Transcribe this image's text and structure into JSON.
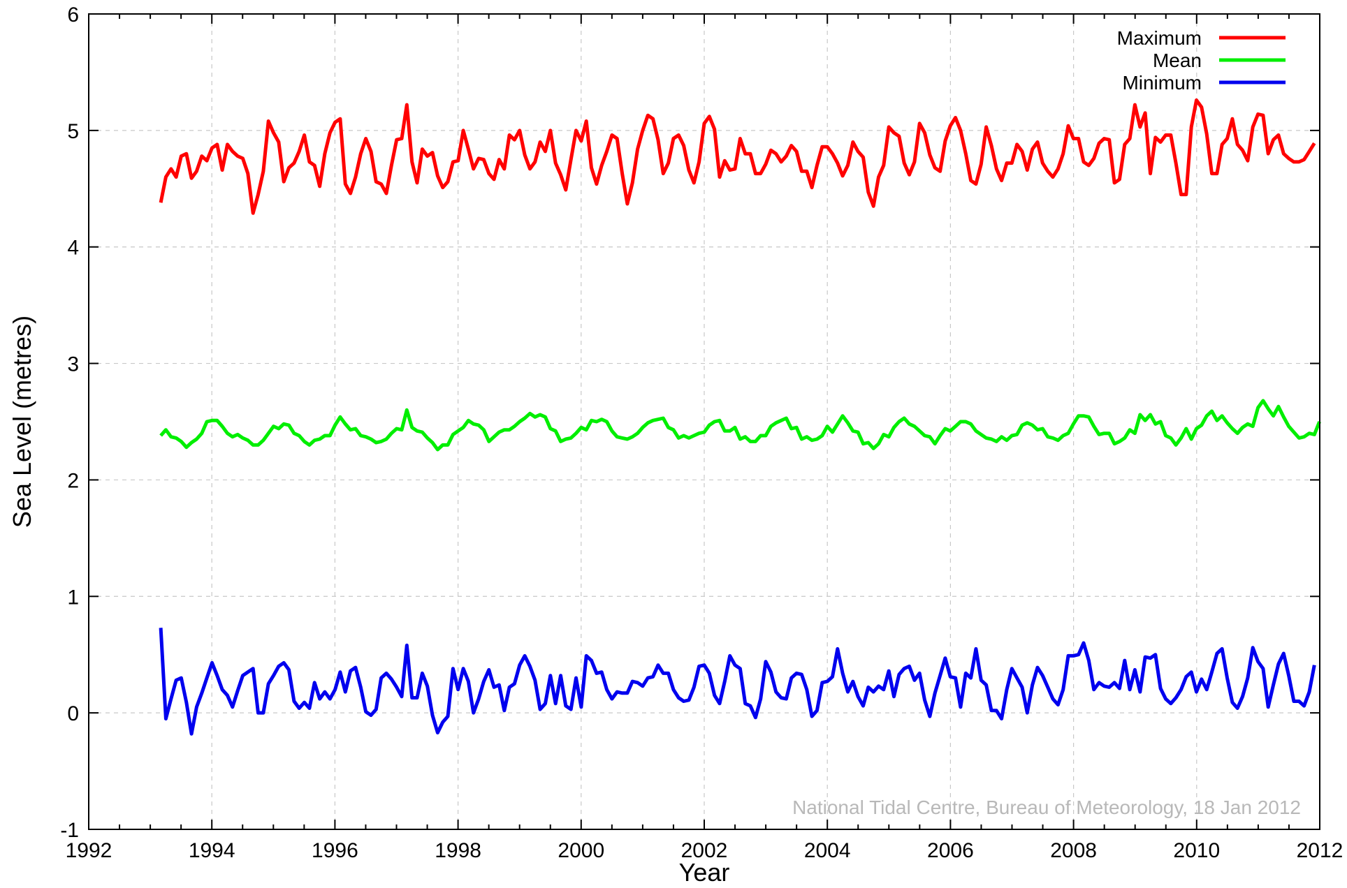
{
  "chart_data": {
    "type": "line",
    "title": "",
    "xlabel": "Year",
    "ylabel": "Sea Level (metres)",
    "xlim": [
      1992,
      2012
    ],
    "ylim": [
      -1,
      6
    ],
    "x_ticks": [
      1992,
      1994,
      1996,
      1998,
      2000,
      2002,
      2004,
      2006,
      2008,
      2010,
      2012
    ],
    "y_ticks": [
      -1,
      0,
      1,
      2,
      3,
      4,
      5,
      6
    ],
    "x_tick_labels": [
      "1992",
      "1994",
      "1996",
      "1998",
      "2000",
      "2002",
      "2004",
      "2006",
      "2008",
      "2010",
      "2012"
    ],
    "y_tick_labels": [
      "-1",
      "0",
      "1",
      "2",
      "3",
      "4",
      "5",
      "6"
    ],
    "grid": true,
    "legend_position": "top-right",
    "credit": "National Tidal Centre, Bureau of Meteorology, 18 Jan 2012",
    "x_start": 1993.17,
    "x_step": 0.0833,
    "series": [
      {
        "name": "Maximum",
        "color": "#ff0000",
        "values": [
          4.38,
          4.6,
          4.67,
          4.6,
          4.78,
          4.8,
          4.59,
          4.65,
          4.78,
          4.74,
          4.85,
          4.88,
          4.66,
          4.88,
          4.82,
          4.78,
          4.76,
          4.63,
          4.29,
          4.45,
          4.65,
          5.08,
          4.98,
          4.9,
          4.56,
          4.68,
          4.72,
          4.82,
          4.96,
          4.73,
          4.7,
          4.52,
          4.8,
          4.98,
          5.07,
          5.1,
          4.54,
          4.46,
          4.6,
          4.8,
          4.93,
          4.82,
          4.56,
          4.54,
          4.46,
          4.7,
          4.92,
          4.93,
          5.22,
          4.73,
          4.55,
          4.84,
          4.78,
          4.81,
          4.61,
          4.51,
          4.56,
          4.73,
          4.74,
          5.0,
          4.84,
          4.67,
          4.76,
          4.75,
          4.63,
          4.58,
          4.75,
          4.67,
          4.96,
          4.92,
          5.0,
          4.79,
          4.67,
          4.73,
          4.9,
          4.82,
          5.0,
          4.72,
          4.62,
          4.49,
          4.75,
          5.0,
          4.91,
          5.08,
          4.68,
          4.54,
          4.7,
          4.82,
          4.96,
          4.93,
          4.63,
          4.37,
          4.55,
          4.84,
          5.0,
          5.13,
          5.1,
          4.92,
          4.63,
          4.72,
          4.93,
          4.96,
          4.87,
          4.66,
          4.55,
          4.73,
          5.06,
          5.12,
          5.01,
          4.6,
          4.74,
          4.66,
          4.67,
          4.93,
          4.8,
          4.8,
          4.63,
          4.63,
          4.71,
          4.83,
          4.8,
          4.73,
          4.78,
          4.87,
          4.82,
          4.65,
          4.65,
          4.51,
          4.7,
          4.86,
          4.86,
          4.8,
          4.72,
          4.61,
          4.7,
          4.9,
          4.82,
          4.77,
          4.47,
          4.35,
          4.6,
          4.7,
          5.03,
          4.98,
          4.95,
          4.72,
          4.62,
          4.73,
          5.06,
          4.98,
          4.79,
          4.68,
          4.65,
          4.91,
          5.04,
          5.11,
          5.0,
          4.8,
          4.57,
          4.54,
          4.71,
          5.03,
          4.87,
          4.67,
          4.57,
          4.72,
          4.72,
          4.88,
          4.82,
          4.66,
          4.84,
          4.9,
          4.72,
          4.65,
          4.6,
          4.67,
          4.8,
          5.04,
          4.93,
          4.93,
          4.73,
          4.7,
          4.76,
          4.89,
          4.93,
          4.92,
          4.55,
          4.58,
          4.88,
          4.93,
          5.22,
          5.03,
          5.15,
          4.63,
          4.94,
          4.9,
          4.96,
          4.96,
          4.72,
          4.45,
          4.45,
          5.03,
          5.26,
          5.2,
          4.97,
          4.63,
          4.63,
          4.88,
          4.93,
          5.1,
          4.88,
          4.83,
          4.74,
          5.03,
          5.14,
          5.13,
          4.8,
          4.92,
          4.96,
          4.8,
          4.76,
          4.73,
          4.73,
          4.75,
          4.82,
          4.89
        ]
      },
      {
        "name": "Mean",
        "color": "#00ee00",
        "values": [
          2.38,
          2.43,
          2.37,
          2.36,
          2.33,
          2.28,
          2.32,
          2.35,
          2.4,
          2.5,
          2.51,
          2.51,
          2.46,
          2.4,
          2.37,
          2.39,
          2.36,
          2.34,
          2.3,
          2.3,
          2.34,
          2.4,
          2.46,
          2.44,
          2.48,
          2.47,
          2.4,
          2.38,
          2.33,
          2.3,
          2.34,
          2.35,
          2.38,
          2.38,
          2.47,
          2.54,
          2.48,
          2.43,
          2.44,
          2.38,
          2.37,
          2.35,
          2.32,
          2.33,
          2.35,
          2.4,
          2.44,
          2.43,
          2.6,
          2.45,
          2.42,
          2.41,
          2.36,
          2.32,
          2.26,
          2.3,
          2.3,
          2.39,
          2.42,
          2.45,
          2.51,
          2.48,
          2.47,
          2.43,
          2.33,
          2.37,
          2.41,
          2.43,
          2.43,
          2.46,
          2.5,
          2.53,
          2.57,
          2.54,
          2.56,
          2.54,
          2.44,
          2.42,
          2.33,
          2.35,
          2.36,
          2.4,
          2.45,
          2.43,
          2.51,
          2.5,
          2.52,
          2.5,
          2.42,
          2.37,
          2.36,
          2.35,
          2.37,
          2.4,
          2.45,
          2.49,
          2.51,
          2.52,
          2.53,
          2.45,
          2.43,
          2.36,
          2.38,
          2.36,
          2.38,
          2.4,
          2.41,
          2.47,
          2.5,
          2.51,
          2.42,
          2.42,
          2.45,
          2.35,
          2.37,
          2.33,
          2.33,
          2.38,
          2.38,
          2.46,
          2.49,
          2.51,
          2.53,
          2.44,
          2.45,
          2.35,
          2.37,
          2.34,
          2.35,
          2.38,
          2.46,
          2.41,
          2.48,
          2.55,
          2.49,
          2.42,
          2.41,
          2.31,
          2.32,
          2.27,
          2.31,
          2.39,
          2.37,
          2.45,
          2.5,
          2.53,
          2.48,
          2.46,
          2.42,
          2.38,
          2.37,
          2.31,
          2.38,
          2.44,
          2.42,
          2.46,
          2.5,
          2.5,
          2.48,
          2.42,
          2.39,
          2.36,
          2.35,
          2.33,
          2.37,
          2.34,
          2.38,
          2.39,
          2.47,
          2.49,
          2.47,
          2.43,
          2.44,
          2.37,
          2.36,
          2.34,
          2.38,
          2.4,
          2.48,
          2.55,
          2.55,
          2.54,
          2.46,
          2.39,
          2.4,
          2.4,
          2.31,
          2.33,
          2.36,
          2.43,
          2.4,
          2.56,
          2.51,
          2.56,
          2.48,
          2.5,
          2.38,
          2.36,
          2.3,
          2.36,
          2.44,
          2.35,
          2.44,
          2.47,
          2.55,
          2.59,
          2.51,
          2.55,
          2.49,
          2.44,
          2.4,
          2.45,
          2.48,
          2.46,
          2.62,
          2.68,
          2.61,
          2.55,
          2.63,
          2.54,
          2.46,
          2.41,
          2.36,
          2.37,
          2.4,
          2.39,
          2.5
        ]
      },
      {
        "name": "Minimum",
        "color": "#0000ee",
        "values": [
          0.73,
          -0.05,
          0.12,
          0.28,
          0.3,
          0.09,
          -0.18,
          0.05,
          0.17,
          0.3,
          0.43,
          0.32,
          0.2,
          0.15,
          0.05,
          0.19,
          0.32,
          0.35,
          0.38,
          0.0,
          0.0,
          0.25,
          0.32,
          0.4,
          0.43,
          0.37,
          0.1,
          0.04,
          0.09,
          0.04,
          0.26,
          0.12,
          0.18,
          0.12,
          0.2,
          0.35,
          0.18,
          0.36,
          0.39,
          0.22,
          0.01,
          -0.02,
          0.03,
          0.3,
          0.34,
          0.29,
          0.22,
          0.14,
          0.58,
          0.13,
          0.13,
          0.34,
          0.23,
          -0.02,
          -0.17,
          -0.08,
          -0.03,
          0.38,
          0.2,
          0.38,
          0.27,
          0.0,
          0.12,
          0.27,
          0.37,
          0.22,
          0.24,
          0.02,
          0.22,
          0.25,
          0.41,
          0.49,
          0.4,
          0.28,
          0.03,
          0.08,
          0.32,
          0.08,
          0.32,
          0.06,
          0.03,
          0.3,
          0.05,
          0.49,
          0.45,
          0.34,
          0.35,
          0.2,
          0.12,
          0.18,
          0.17,
          0.17,
          0.27,
          0.26,
          0.23,
          0.3,
          0.31,
          0.41,
          0.34,
          0.34,
          0.2,
          0.13,
          0.1,
          0.11,
          0.22,
          0.4,
          0.41,
          0.34,
          0.15,
          0.08,
          0.27,
          0.49,
          0.41,
          0.38,
          0.08,
          0.06,
          -0.04,
          0.12,
          0.44,
          0.35,
          0.18,
          0.13,
          0.12,
          0.3,
          0.34,
          0.33,
          0.2,
          -0.03,
          0.02,
          0.26,
          0.27,
          0.31,
          0.55,
          0.34,
          0.18,
          0.27,
          0.14,
          0.06,
          0.22,
          0.18,
          0.23,
          0.2,
          0.36,
          0.14,
          0.33,
          0.38,
          0.4,
          0.28,
          0.34,
          0.11,
          -0.03,
          0.17,
          0.32,
          0.47,
          0.31,
          0.3,
          0.05,
          0.34,
          0.3,
          0.55,
          0.28,
          0.24,
          0.02,
          0.02,
          -0.05,
          0.2,
          0.38,
          0.3,
          0.22,
          0.0,
          0.24,
          0.39,
          0.32,
          0.22,
          0.12,
          0.07,
          0.2,
          0.49,
          0.49,
          0.5,
          0.6,
          0.45,
          0.2,
          0.26,
          0.23,
          0.22,
          0.26,
          0.21,
          0.45,
          0.2,
          0.37,
          0.18,
          0.48,
          0.47,
          0.5,
          0.21,
          0.12,
          0.08,
          0.13,
          0.2,
          0.31,
          0.35,
          0.18,
          0.29,
          0.2,
          0.35,
          0.51,
          0.55,
          0.3,
          0.09,
          0.04,
          0.14,
          0.3,
          0.56,
          0.44,
          0.38,
          0.05,
          0.24,
          0.42,
          0.51,
          0.32,
          0.1,
          0.1,
          0.06,
          0.18,
          0.41
        ]
      }
    ]
  }
}
